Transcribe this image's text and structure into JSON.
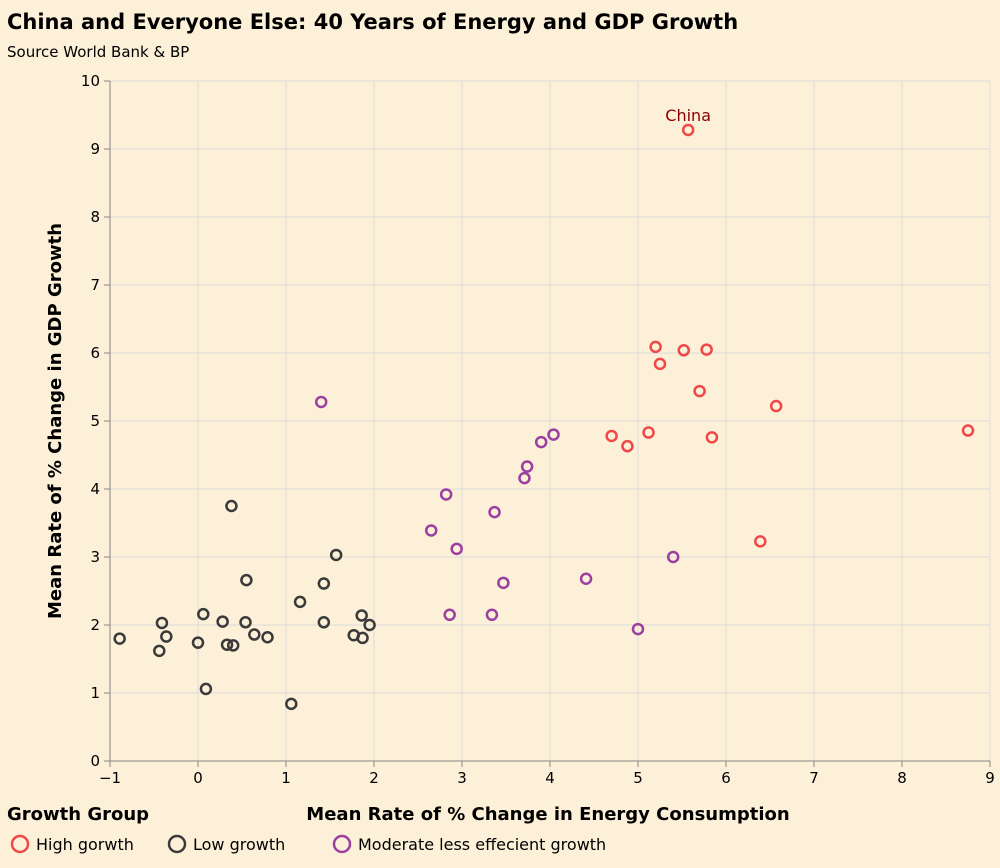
{
  "chart_data": {
    "type": "scatter",
    "title": "China and Everyone Else: 40 Years of Energy and GDP Growth",
    "subtitle": "Source World Bank & BP",
    "xlabel": "Mean Rate of % Change in Energy Consumption",
    "ylabel": "Mean Rate of % Change in GDP Growth",
    "xlim": [
      -1,
      9
    ],
    "ylim": [
      0,
      10
    ],
    "x_ticks": [
      -1,
      0,
      1,
      2,
      3,
      4,
      5,
      6,
      7,
      8,
      9
    ],
    "y_ticks": [
      0,
      1,
      2,
      3,
      4,
      5,
      6,
      7,
      8,
      9,
      10
    ],
    "grid": true,
    "legend": {
      "title": "Growth Group",
      "placement": "bottom-left",
      "entries": [
        "High gorwth",
        "Low growth",
        "Moderate less effecient growth"
      ]
    },
    "annotations": [
      {
        "text": "China",
        "x": 5.57,
        "y": 9.28,
        "color": "#8b0000"
      }
    ],
    "series": [
      {
        "name": "High gorwth",
        "color": "#f04747",
        "points": [
          [
            5.57,
            9.28
          ],
          [
            5.2,
            6.09
          ],
          [
            5.52,
            6.04
          ],
          [
            5.78,
            6.05
          ],
          [
            5.25,
            5.84
          ],
          [
            5.7,
            5.44
          ],
          [
            6.57,
            5.22
          ],
          [
            8.75,
            4.86
          ],
          [
            4.7,
            4.78
          ],
          [
            5.12,
            4.83
          ],
          [
            5.84,
            4.76
          ],
          [
            4.88,
            4.63
          ],
          [
            6.39,
            3.23
          ]
        ]
      },
      {
        "name": "Low growth",
        "color": "#3a3a3a",
        "points": [
          [
            0.38,
            3.75
          ],
          [
            1.57,
            3.03
          ],
          [
            0.55,
            2.66
          ],
          [
            1.43,
            2.61
          ],
          [
            1.16,
            2.34
          ],
          [
            0.06,
            2.16
          ],
          [
            1.86,
            2.14
          ],
          [
            0.28,
            2.05
          ],
          [
            0.54,
            2.04
          ],
          [
            1.43,
            2.04
          ],
          [
            -0.41,
            2.03
          ],
          [
            1.95,
            2.0
          ],
          [
            -0.36,
            1.83
          ],
          [
            0.64,
            1.86
          ],
          [
            0.79,
            1.82
          ],
          [
            1.77,
            1.85
          ],
          [
            1.87,
            1.81
          ],
          [
            -0.89,
            1.8
          ],
          [
            0.0,
            1.74
          ],
          [
            0.33,
            1.71
          ],
          [
            0.4,
            1.7
          ],
          [
            -0.44,
            1.62
          ],
          [
            0.09,
            1.06
          ],
          [
            1.06,
            0.84
          ]
        ]
      },
      {
        "name": "Moderate less effecient growth",
        "color": "#9b3fa1",
        "points": [
          [
            1.4,
            5.28
          ],
          [
            4.04,
            4.8
          ],
          [
            3.9,
            4.69
          ],
          [
            3.74,
            4.33
          ],
          [
            3.71,
            4.16
          ],
          [
            2.82,
            3.92
          ],
          [
            3.37,
            3.66
          ],
          [
            2.65,
            3.39
          ],
          [
            2.94,
            3.12
          ],
          [
            5.4,
            3.0
          ],
          [
            4.41,
            2.68
          ],
          [
            3.47,
            2.62
          ],
          [
            2.86,
            2.15
          ],
          [
            3.34,
            2.15
          ],
          [
            5.0,
            1.94
          ]
        ]
      }
    ]
  }
}
